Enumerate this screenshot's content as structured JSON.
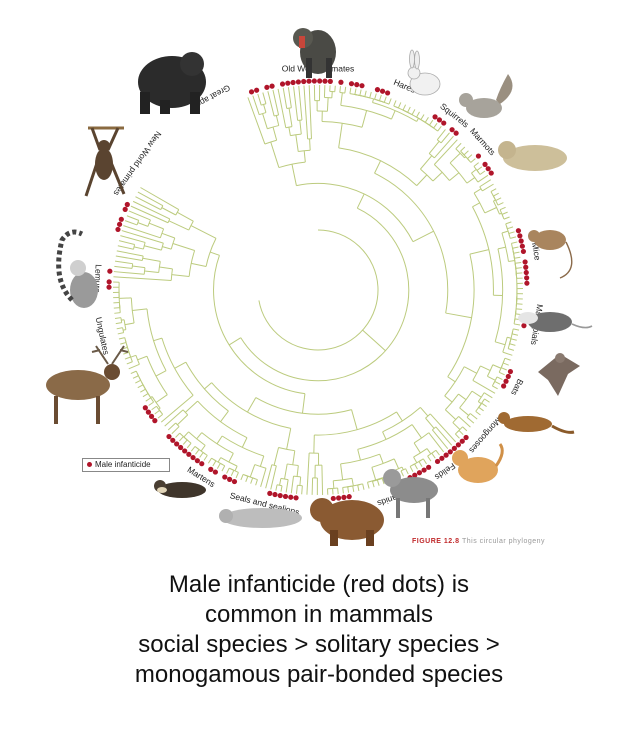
{
  "colors": {
    "branch": "#bccb7e",
    "dot": "#b0152a"
  },
  "clades": [
    {
      "label": "Old World primates",
      "angle": -90
    },
    {
      "label": "Hares",
      "angle": -67
    },
    {
      "label": "Squirrels",
      "angle": -52
    },
    {
      "label": "Marmots",
      "angle": -42
    },
    {
      "label": "Mice",
      "angle": -10
    },
    {
      "label": "Marsupials",
      "angle": 9
    },
    {
      "label": "Bats",
      "angle": 26
    },
    {
      "label": "Mongooses",
      "angle": 41
    },
    {
      "label": "Felids",
      "angle": 55
    },
    {
      "label": "Canids",
      "angle": 71
    },
    {
      "label": "Bears",
      "angle": 89
    },
    {
      "label": "Seals and sealions",
      "angle": 104
    },
    {
      "label": "Martens",
      "angle": 122
    },
    {
      "label": "Ungulates",
      "angle": 168
    },
    {
      "label": "Lemurs",
      "angle": 183
    },
    {
      "label": "New World primates",
      "angle": 215
    },
    {
      "label": "Great apes",
      "angle": 241
    }
  ],
  "infanticide_arcs": [
    [
      -112,
      -68
    ],
    [
      -58,
      -46
    ],
    [
      -40,
      -34
    ],
    [
      -17,
      -1
    ],
    [
      8,
      11
    ],
    [
      22,
      28
    ],
    [
      44,
      64
    ],
    [
      80,
      86
    ],
    [
      95,
      104
    ],
    [
      113,
      136
    ],
    [
      140,
      146
    ],
    [
      178,
      188
    ],
    [
      196,
      205
    ],
    [
      213,
      244
    ]
  ],
  "animals": [
    {
      "name": "gorilla",
      "icon": "gorilla-icon"
    },
    {
      "name": "mandrill",
      "icon": "mandrill-icon"
    },
    {
      "name": "rabbit",
      "icon": "rabbit-icon"
    },
    {
      "name": "squirrel",
      "icon": "squirrel-icon"
    },
    {
      "name": "marmot",
      "icon": "marmot-icon"
    },
    {
      "name": "mouse",
      "icon": "mouse-icon"
    },
    {
      "name": "opossum",
      "icon": "opossum-icon"
    },
    {
      "name": "bat",
      "icon": "bat-icon"
    },
    {
      "name": "mongoose",
      "icon": "mongoose-icon"
    },
    {
      "name": "cat",
      "icon": "cat-icon"
    },
    {
      "name": "wolf",
      "icon": "wolf-icon"
    },
    {
      "name": "bear",
      "icon": "bear-icon"
    },
    {
      "name": "seal",
      "icon": "seal-icon"
    },
    {
      "name": "marten",
      "icon": "marten-icon"
    },
    {
      "name": "elk",
      "icon": "elk-icon"
    },
    {
      "name": "lemur",
      "icon": "lemur-icon"
    },
    {
      "name": "spider monkey",
      "icon": "spider-monkey-icon"
    }
  ],
  "legend": {
    "label": "Male infanticide"
  },
  "figure_label": {
    "bold": "FIGURE 12.8",
    "rest": "This circular phylogeny"
  },
  "caption": {
    "line1": "Male infanticide (red dots) is",
    "line2": "common in mammals",
    "line3": "social species > solitary species >",
    "line4": "monogamous pair-bonded species"
  }
}
